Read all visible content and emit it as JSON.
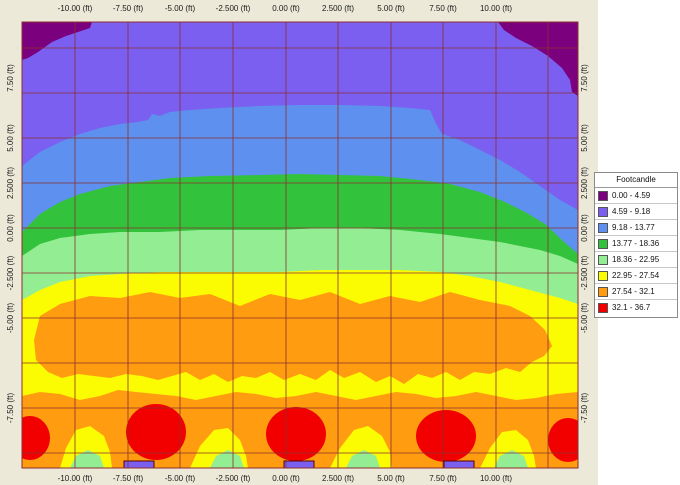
{
  "plot": {
    "x_ticks": [
      "-10.00 (ft)",
      "-7.50 (ft)",
      "-5.00 (ft)",
      "-2.500 (ft)",
      "0.00 (ft)",
      "2.500 (ft)",
      "5.00 (ft)",
      "7.50 (ft)",
      "10.00 (ft)"
    ],
    "y_ticks": [
      "7.50 (ft)",
      "5.00 (ft)",
      "2.500 (ft)",
      "0.00 (ft)",
      "-2.500 (ft)",
      "-5.00 (ft)",
      "-7.50 (ft)"
    ],
    "colors": {
      "band_0": "#7a007e",
      "band_1": "#7a5ff0",
      "band_2": "#5e91ef",
      "band_3": "#33c23c",
      "band_4": "#93ee93",
      "band_5": "#fbfb02",
      "band_6": "#ff9c10",
      "band_7": "#f20000",
      "grid": "#8b2f2f",
      "frame": "#ece9d8"
    }
  },
  "legend": {
    "title": "Footcandle",
    "items": [
      {
        "label": "0.00 - 4.59",
        "color": "#7a007e"
      },
      {
        "label": "4.59 - 9.18",
        "color": "#7a5ff0"
      },
      {
        "label": "9.18 - 13.77",
        "color": "#5e91ef"
      },
      {
        "label": "13.77 - 18.36",
        "color": "#33c23c"
      },
      {
        "label": "18.36 - 22.95",
        "color": "#93ee93"
      },
      {
        "label": "22.95 - 27.54",
        "color": "#fbfb02"
      },
      {
        "label": "27.54 - 32.1",
        "color": "#ff9c10"
      },
      {
        "label": "32.1 - 36.7",
        "color": "#f20000"
      }
    ]
  }
}
